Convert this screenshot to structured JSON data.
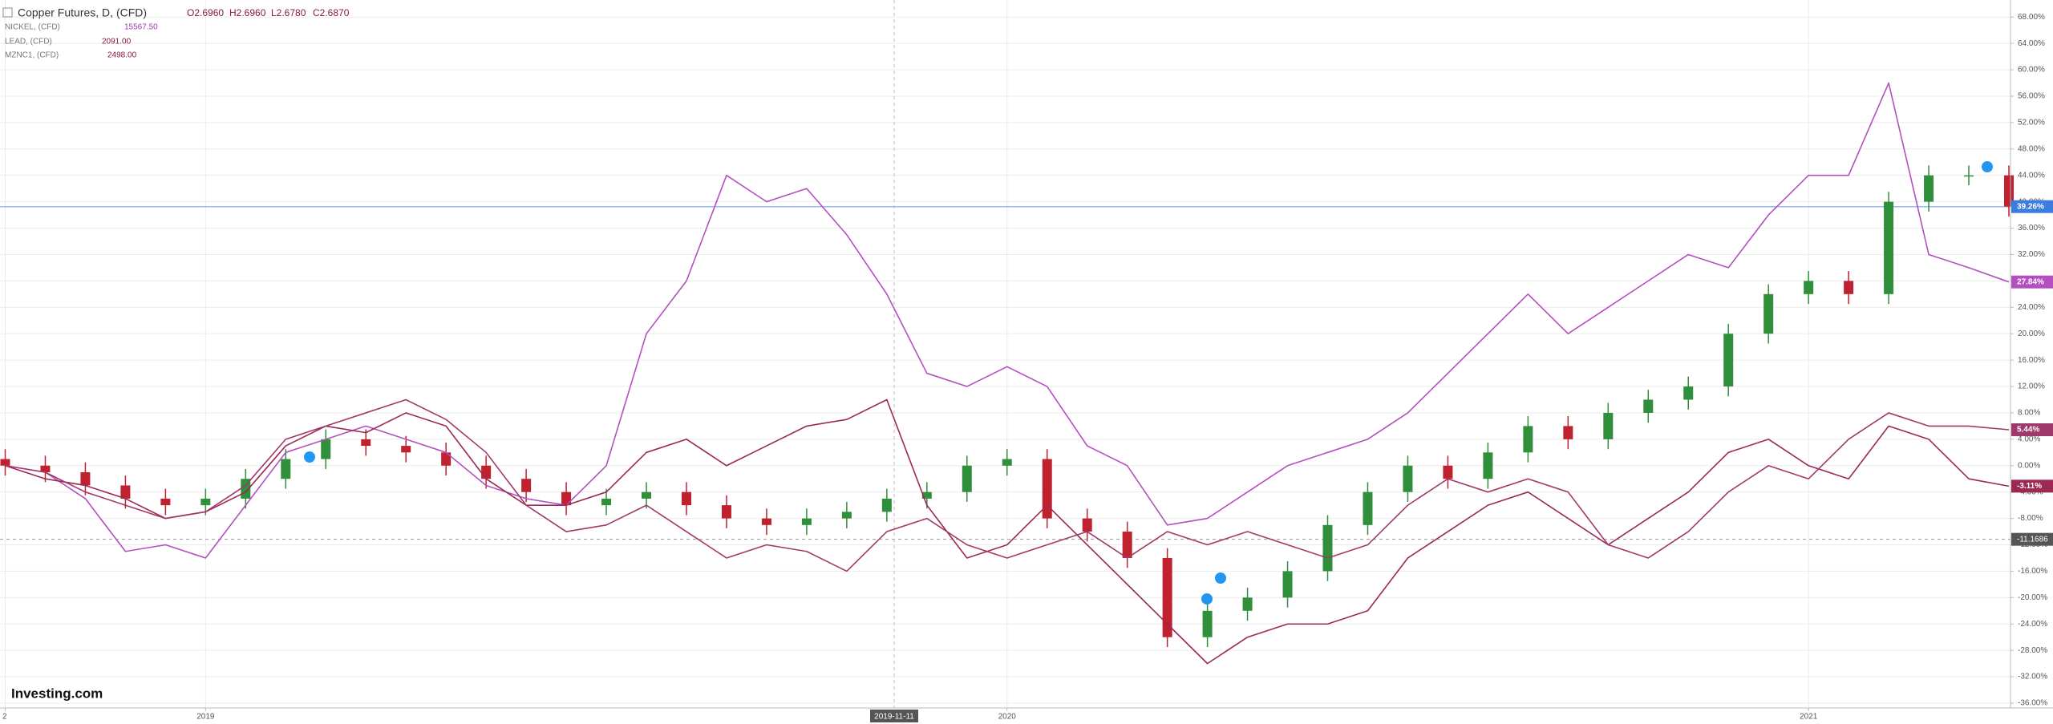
{
  "chart_data": {
    "type": "candlestick",
    "categories": [
      "2",
      null,
      null,
      null,
      null,
      "2019",
      null,
      null,
      null,
      null,
      null,
      null,
      null,
      null,
      null,
      null,
      null,
      null,
      null,
      null,
      null,
      null,
      null,
      null,
      null,
      "2020",
      null,
      null,
      null,
      null,
      null,
      null,
      null,
      null,
      null,
      null,
      null,
      null,
      null,
      null,
      null,
      null,
      null,
      null,
      null,
      "2021",
      null,
      null,
      null,
      null,
      null
    ],
    "ylim": [
      -36.73,
      70.58
    ],
    "yticks": [
      {
        "value": 68,
        "label": "68.00%"
      },
      {
        "value": 64,
        "label": "64.00%"
      },
      {
        "value": 60,
        "label": "60.00%"
      },
      {
        "value": 56,
        "label": "56.00%"
      },
      {
        "value": 52,
        "label": "52.00%"
      },
      {
        "value": 48,
        "label": "48.00%"
      },
      {
        "value": 44,
        "label": "44.00%"
      },
      {
        "value": 40,
        "label": "40.00%"
      },
      {
        "value": 36,
        "label": "36.00%"
      },
      {
        "value": 32,
        "label": "32.00%"
      },
      {
        "value": 28,
        "label": "28.00%"
      },
      {
        "value": 24,
        "label": "24.00%"
      },
      {
        "value": 20,
        "label": "20.00%"
      },
      {
        "value": 16,
        "label": "16.00%"
      },
      {
        "value": 12,
        "label": "12.00%"
      },
      {
        "value": 8,
        "label": "8.00%"
      },
      {
        "value": 4,
        "label": "4.00%"
      },
      {
        "value": 0,
        "label": "0.00%"
      },
      {
        "value": -4,
        "label": "-4.00%"
      },
      {
        "value": -8,
        "label": "-8.00%"
      },
      {
        "value": -12,
        "label": "-12.00%"
      },
      {
        "value": -16,
        "label": "-16.00%"
      },
      {
        "value": -20,
        "label": "-20.00%"
      },
      {
        "value": -24,
        "label": "-24.00%"
      },
      {
        "value": -28,
        "label": "-28.00%"
      },
      {
        "value": -32,
        "label": "-32.00%"
      },
      {
        "value": -36,
        "label": "-36.00%"
      }
    ],
    "grid": true,
    "crosshair": {
      "x_label": "2019-11-11",
      "y": {
        "value": -11.1686,
        "label": "-11.1686"
      }
    },
    "logo": "Investing.com",
    "series": [
      {
        "name": "Copper Futures, D, (CFD)",
        "type": "candlestick",
        "up_color": "#2f8f3a",
        "down_color": "#c0212f",
        "color": "#3b7ddd",
        "ohlc_labels": [
          "O2.6960",
          "H2.6960",
          "L2.6780",
          "C2.6870"
        ],
        "last_value_label": "39.26%",
        "open": [
          1,
          0,
          -1,
          -3,
          -5,
          -6,
          -5,
          -2,
          1,
          4,
          3,
          2,
          0,
          -2,
          -4,
          -6,
          -5,
          -4,
          -6,
          -8,
          -9,
          -8,
          -7,
          -5,
          -4,
          0,
          1,
          -8,
          -10,
          -14,
          -26,
          -22,
          -20,
          -16,
          -9,
          -4,
          0,
          -2,
          2,
          6,
          4,
          8,
          10,
          12,
          20,
          26,
          28,
          26,
          40,
          44,
          44
        ],
        "high": [
          2.5,
          1.5,
          0.5,
          -1.5,
          -3.5,
          -3.5,
          -0.5,
          2.5,
          5.5,
          5.5,
          4.5,
          3.5,
          1.5,
          -0.5,
          -2.5,
          -3.5,
          -2.5,
          -2.5,
          -4.5,
          -6.5,
          -6.5,
          -5.5,
          -3.5,
          -2.5,
          1.5,
          2.5,
          2.5,
          -6.5,
          -8.5,
          -12.5,
          -20.5,
          -18.5,
          -14.5,
          -7.5,
          -2.5,
          1.5,
          1.5,
          3.5,
          7.5,
          7.5,
          9.5,
          11.5,
          13.5,
          21.5,
          27.5,
          29.5,
          29.5,
          41.5,
          45.5,
          45.5,
          45.5
        ],
        "low": [
          -1.5,
          -2.5,
          -4.5,
          -6.5,
          -7.5,
          -7.5,
          -6.5,
          -3.5,
          -0.5,
          1.5,
          0.5,
          -1.5,
          -3.5,
          -5.5,
          -7.5,
          -7.5,
          -6.5,
          -7.5,
          -9.5,
          -10.5,
          -10.5,
          -9.5,
          -8.5,
          -6.5,
          -5.5,
          -1.5,
          -9.5,
          -11.5,
          -15.5,
          -27.5,
          -27.5,
          -23.5,
          -21.5,
          -17.5,
          -10.5,
          -5.5,
          -3.5,
          -3.5,
          0.5,
          2.5,
          2.5,
          6.5,
          8.5,
          10.5,
          18.5,
          24.5,
          24.5,
          24.5,
          38.5,
          42.5,
          37.76
        ],
        "close": [
          0,
          -1,
          -3,
          -5,
          -6,
          -5,
          -2,
          1,
          4,
          3,
          2,
          0,
          -2,
          -4,
          -6,
          -5,
          -4,
          -6,
          -8,
          -9,
          -8,
          -7,
          -5,
          -4,
          0,
          1,
          -8,
          -10,
          -14,
          -26,
          -22,
          -20,
          -16,
          -9,
          -4,
          0,
          -2,
          2,
          6,
          4,
          8,
          10,
          12,
          20,
          26,
          28,
          26,
          40,
          44,
          44,
          39.26
        ]
      },
      {
        "name": "NICKEL, (CFD)",
        "type": "line",
        "color": "#b44fc0",
        "label_color": "#a03cb0",
        "price_label": "15567.50",
        "last_value_label": "27.84%",
        "values": [
          0,
          -1,
          -5,
          -13,
          -12,
          -14,
          -6,
          2,
          4,
          6,
          4,
          2,
          -3,
          -5,
          -6,
          0,
          20,
          28,
          44,
          40,
          42,
          35,
          26,
          14,
          12,
          15,
          12,
          3,
          0,
          -9,
          -8,
          -4,
          0,
          2,
          4,
          8,
          14,
          20,
          26,
          20,
          24,
          28,
          32,
          30,
          38,
          44,
          44,
          58,
          32,
          30,
          27.84
        ]
      },
      {
        "name": "LEAD, (CFD)",
        "type": "line",
        "color": "#9c2953",
        "label_color": "#8b1a3c",
        "price_label": "2091.00",
        "last_value_label": "-3.11%",
        "values": [
          0,
          -2,
          -3,
          -5,
          -8,
          -7,
          -4,
          3,
          6,
          5,
          8,
          6,
          -2,
          -6,
          -6,
          -4,
          2,
          4,
          0,
          3,
          6,
          7,
          10,
          -6,
          -14,
          -12,
          -6,
          -12,
          -18,
          -24,
          -30,
          -26,
          -24,
          -24,
          -22,
          -14,
          -10,
          -6,
          -4,
          -8,
          -12,
          -8,
          -4,
          2,
          4,
          0,
          -2,
          6,
          4,
          -2,
          -3.11
        ]
      },
      {
        "name": "MZNC1, (CFD)",
        "type": "line",
        "color": "#a0396b",
        "label_color": "#8b1a3c",
        "price_label": "2498.00",
        "last_value_label": "5.44%",
        "values": [
          0,
          -1,
          -4,
          -6,
          -8,
          -7,
          -3,
          4,
          6,
          8,
          10,
          7,
          2,
          -6,
          -10,
          -9,
          -6,
          -10,
          -14,
          -12,
          -13,
          -16,
          -10,
          -8,
          -12,
          -14,
          -12,
          -10,
          -14,
          -10,
          -12,
          -10,
          -12,
          -14,
          -12,
          -6,
          -2,
          -4,
          -2,
          -4,
          -12,
          -14,
          -10,
          -4,
          0,
          -2,
          4,
          8,
          6,
          6,
          5.44
        ]
      }
    ]
  }
}
